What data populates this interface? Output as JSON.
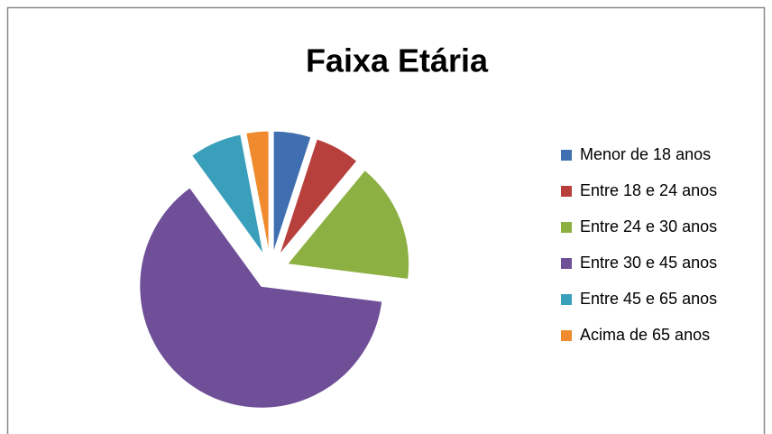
{
  "chart_data": {
    "type": "pie",
    "title": "Faixa Etária",
    "categories": [
      "Menor de 18 anos",
      "Entre 18 e 24 anos",
      "Entre 24 e 30 anos",
      "Entre 30 e 45 anos",
      "Entre 45 e 65 anos",
      "Acima de 65 anos"
    ],
    "values": [
      5,
      6,
      16,
      63,
      7,
      3
    ],
    "colors": [
      "#3f6fb0",
      "#b8403c",
      "#8cb042",
      "#6f4f98",
      "#3a9fbb",
      "#ef8a2e"
    ],
    "exploded": true,
    "legend": "right"
  }
}
